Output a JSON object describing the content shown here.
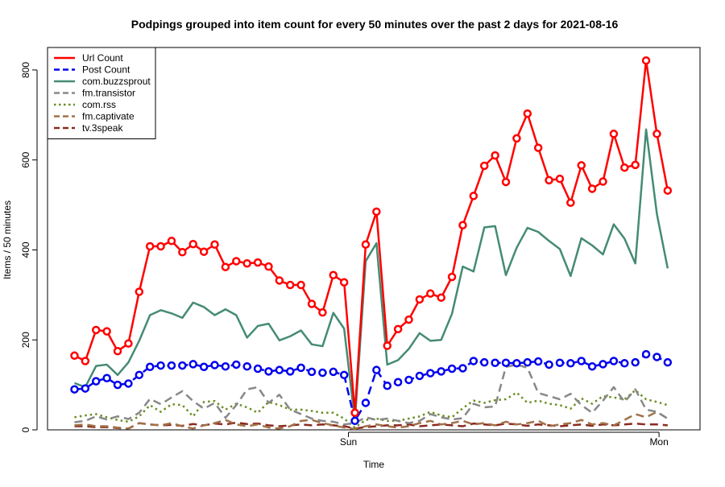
{
  "chart_data": {
    "type": "line",
    "title": "Podpings grouped into item count for every 50 minutes  over the past 2 days for 2021-08-16",
    "xlabel": "Time",
    "ylabel": "Items / 50 minutes",
    "xlim": [
      -2.5,
      58
    ],
    "ylim": [
      0,
      850
    ],
    "x_ticks": [
      {
        "x": 25.4,
        "label": "Sun"
      },
      {
        "x": 54.2,
        "label": "Mon"
      }
    ],
    "y_ticks": [
      0,
      200,
      400,
      600,
      800
    ],
    "legend_position": "top-left",
    "series": [
      {
        "name": "Url Count",
        "color": "#ff0000",
        "style": "solid",
        "width": 2.5,
        "markers": "circle",
        "values": [
          165,
          153,
          222,
          219,
          175,
          192,
          307,
          408,
          408,
          420,
          395,
          413,
          396,
          412,
          362,
          375,
          370,
          372,
          363,
          332,
          322,
          322,
          280,
          261,
          344,
          328,
          38,
          412,
          485,
          187,
          224,
          245,
          290,
          303,
          294,
          340,
          455,
          520,
          587,
          610,
          551,
          648,
          703,
          627,
          555,
          558,
          505,
          588,
          536,
          552,
          658,
          583,
          589,
          821,
          658,
          532
        ]
      },
      {
        "name": "Post Count",
        "color": "#0000ee",
        "style": "dashed",
        "width": 2.5,
        "markers": "circle",
        "values": [
          90,
          92,
          108,
          115,
          100,
          103,
          122,
          140,
          143,
          143,
          143,
          146,
          140,
          144,
          141,
          145,
          141,
          136,
          130,
          133,
          130,
          138,
          129,
          127,
          129,
          122,
          20,
          60,
          133,
          98,
          106,
          111,
          120,
          126,
          130,
          136,
          137,
          153,
          150,
          149,
          149,
          148,
          150,
          152,
          145,
          149,
          148,
          153,
          141,
          146,
          153,
          148,
          150,
          168,
          162,
          150
        ]
      },
      {
        "name": "com.buzzsprout",
        "color": "#458b74",
        "style": "solid",
        "width": 2.5,
        "markers": "none",
        "values": [
          104,
          95,
          142,
          145,
          122,
          150,
          198,
          255,
          266,
          259,
          249,
          283,
          273,
          255,
          268,
          255,
          205,
          231,
          236,
          199,
          208,
          221,
          190,
          186,
          260,
          225,
          20,
          375,
          415,
          145,
          155,
          180,
          215,
          198,
          200,
          258,
          363,
          352,
          450,
          453,
          344,
          405,
          449,
          440,
          420,
          402,
          342,
          426,
          410,
          390,
          457,
          425,
          370,
          668,
          480,
          359
        ]
      },
      {
        "name": "fm.transistor",
        "color": "#888888",
        "style": "dashed",
        "width": 2.5,
        "markers": "none",
        "values": [
          17,
          20,
          30,
          23,
          30,
          24,
          38,
          69,
          57,
          72,
          86,
          64,
          47,
          60,
          27,
          55,
          90,
          95,
          60,
          78,
          45,
          35,
          25,
          20,
          18,
          12,
          15,
          28,
          22,
          25,
          20,
          15,
          20,
          35,
          28,
          23,
          26,
          58,
          50,
          52,
          140,
          145,
          138,
          82,
          75,
          68,
          80,
          55,
          38,
          65,
          95,
          62,
          90,
          45,
          40,
          25
        ]
      },
      {
        "name": "com.rss",
        "color": "#6b8e23",
        "style": "dotted",
        "width": 2.5,
        "markers": "none",
        "values": [
          28,
          32,
          35,
          28,
          22,
          18,
          30,
          55,
          40,
          57,
          55,
          30,
          62,
          64,
          45,
          58,
          50,
          38,
          62,
          55,
          45,
          45,
          42,
          38,
          38,
          25,
          5,
          22,
          25,
          20,
          20,
          25,
          30,
          40,
          32,
          28,
          48,
          65,
          60,
          66,
          68,
          83,
          60,
          65,
          58,
          55,
          47,
          70,
          58,
          75,
          72,
          68,
          88,
          68,
          62,
          55
        ]
      },
      {
        "name": "fm.captivate",
        "color": "#a0724a",
        "style": "dashed",
        "width": 2.5,
        "markers": "none",
        "values": [
          10,
          12,
          8,
          8,
          5,
          3,
          15,
          12,
          10,
          15,
          8,
          3,
          10,
          15,
          22,
          12,
          8,
          12,
          5,
          3,
          8,
          20,
          22,
          15,
          10,
          5,
          2,
          8,
          12,
          8,
          5,
          8,
          15,
          20,
          12,
          15,
          20,
          12,
          15,
          10,
          18,
          12,
          15,
          20,
          8,
          12,
          15,
          22,
          12,
          15,
          10,
          22,
          35,
          28,
          40,
          25
        ]
      },
      {
        "name": "tv.3speak",
        "color": "#8b2a1f",
        "style": "dashed",
        "width": 2.5,
        "markers": "none",
        "values": [
          8,
          8,
          6,
          6,
          4,
          3,
          15,
          12,
          10,
          11,
          9,
          13,
          10,
          14,
          12,
          16,
          13,
          14,
          10,
          8,
          10,
          12,
          10,
          12,
          10,
          8,
          3,
          6,
          8,
          10,
          10,
          12,
          8,
          10,
          12,
          10,
          8,
          14,
          12,
          10,
          14,
          12,
          9,
          12,
          10,
          8,
          10,
          12,
          9,
          12,
          10,
          12,
          14,
          12,
          12,
          10
        ]
      }
    ]
  }
}
